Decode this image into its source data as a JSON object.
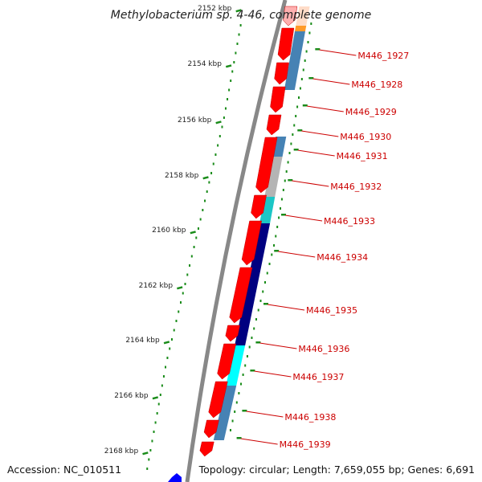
{
  "title": "Methylobacterium sp. 4-46, complete genome",
  "footer": {
    "accession": "Accession: NC_010511",
    "topology": "Topology: circular; Length: 7,659,055 bp; Genes: 6,691"
  },
  "scale_ticks": [
    {
      "label": "2152 kbp",
      "faded": true
    },
    {
      "label": "2154 kbp"
    },
    {
      "label": "2156 kbp"
    },
    {
      "label": "2158 kbp"
    },
    {
      "label": "2160 kbp"
    },
    {
      "label": "2162 kbp"
    },
    {
      "label": "2164 kbp"
    },
    {
      "label": "2166 kbp"
    },
    {
      "label": "2168 kbp"
    }
  ],
  "genes": [
    {
      "label": "M446_1927"
    },
    {
      "label": "M446_1928"
    },
    {
      "label": "M446_1929"
    },
    {
      "label": "M446_1930"
    },
    {
      "label": "M446_1931"
    },
    {
      "label": "M446_1932"
    },
    {
      "label": "M446_1933"
    },
    {
      "label": "M446_1934"
    },
    {
      "label": "M446_1935"
    },
    {
      "label": "M446_1936"
    },
    {
      "label": "M446_1937"
    },
    {
      "label": "M446_1938"
    },
    {
      "label": "M446_1939"
    }
  ],
  "colors": {
    "cds": "#ff0000",
    "backbone": "#888888",
    "tick_green": "#1a8c1a",
    "label_red": "#cc0000",
    "steelblue": "#4682b4",
    "gray": "#b4b4b4",
    "teal": "#1bc6c6",
    "navy": "#000080",
    "cyan": "#00ffff",
    "orange": "#ff9a2a",
    "blue_marker": "#0000ff"
  }
}
